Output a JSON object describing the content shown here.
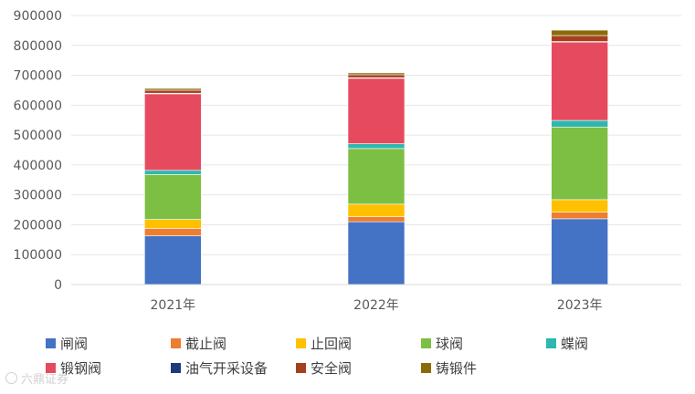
{
  "chart_data": {
    "type": "bar",
    "stacked": true,
    "categories": [
      "2021年",
      "2022年",
      "2023年"
    ],
    "ylim": [
      0,
      900000
    ],
    "yticks": [
      "0",
      "100000",
      "200000",
      "300000",
      "400000",
      "500000",
      "600000",
      "700000",
      "800000",
      "900000"
    ],
    "grid": true,
    "legend_position": "bottom",
    "series": [
      {
        "name": "闸阀",
        "color": "#4472C4",
        "values": [
          163000,
          210000,
          220000
        ]
      },
      {
        "name": "截止阀",
        "color": "#ED7D31",
        "values": [
          25000,
          17000,
          22000
        ]
      },
      {
        "name": "止回阀",
        "color": "#FFC000",
        "values": [
          30000,
          42000,
          42000
        ]
      },
      {
        "name": "球阀",
        "color": "#7CBF42",
        "values": [
          150000,
          186000,
          243000
        ]
      },
      {
        "name": "蝶阀",
        "color": "#2DB7B1",
        "values": [
          14000,
          16000,
          22000
        ]
      },
      {
        "name": "锻钢阀",
        "color": "#E64A5E",
        "values": [
          256000,
          219000,
          262000
        ]
      },
      {
        "name": "油气开采设备",
        "color": "#1F3A7A",
        "values": [
          2000,
          2000,
          2000
        ]
      },
      {
        "name": "安全阀",
        "color": "#A5401E",
        "values": [
          10000,
          10000,
          20000
        ]
      },
      {
        "name": "铸锻件",
        "color": "#8B6A08",
        "values": [
          6000,
          6000,
          18000
        ]
      }
    ]
  },
  "watermark": "六鼎证券"
}
